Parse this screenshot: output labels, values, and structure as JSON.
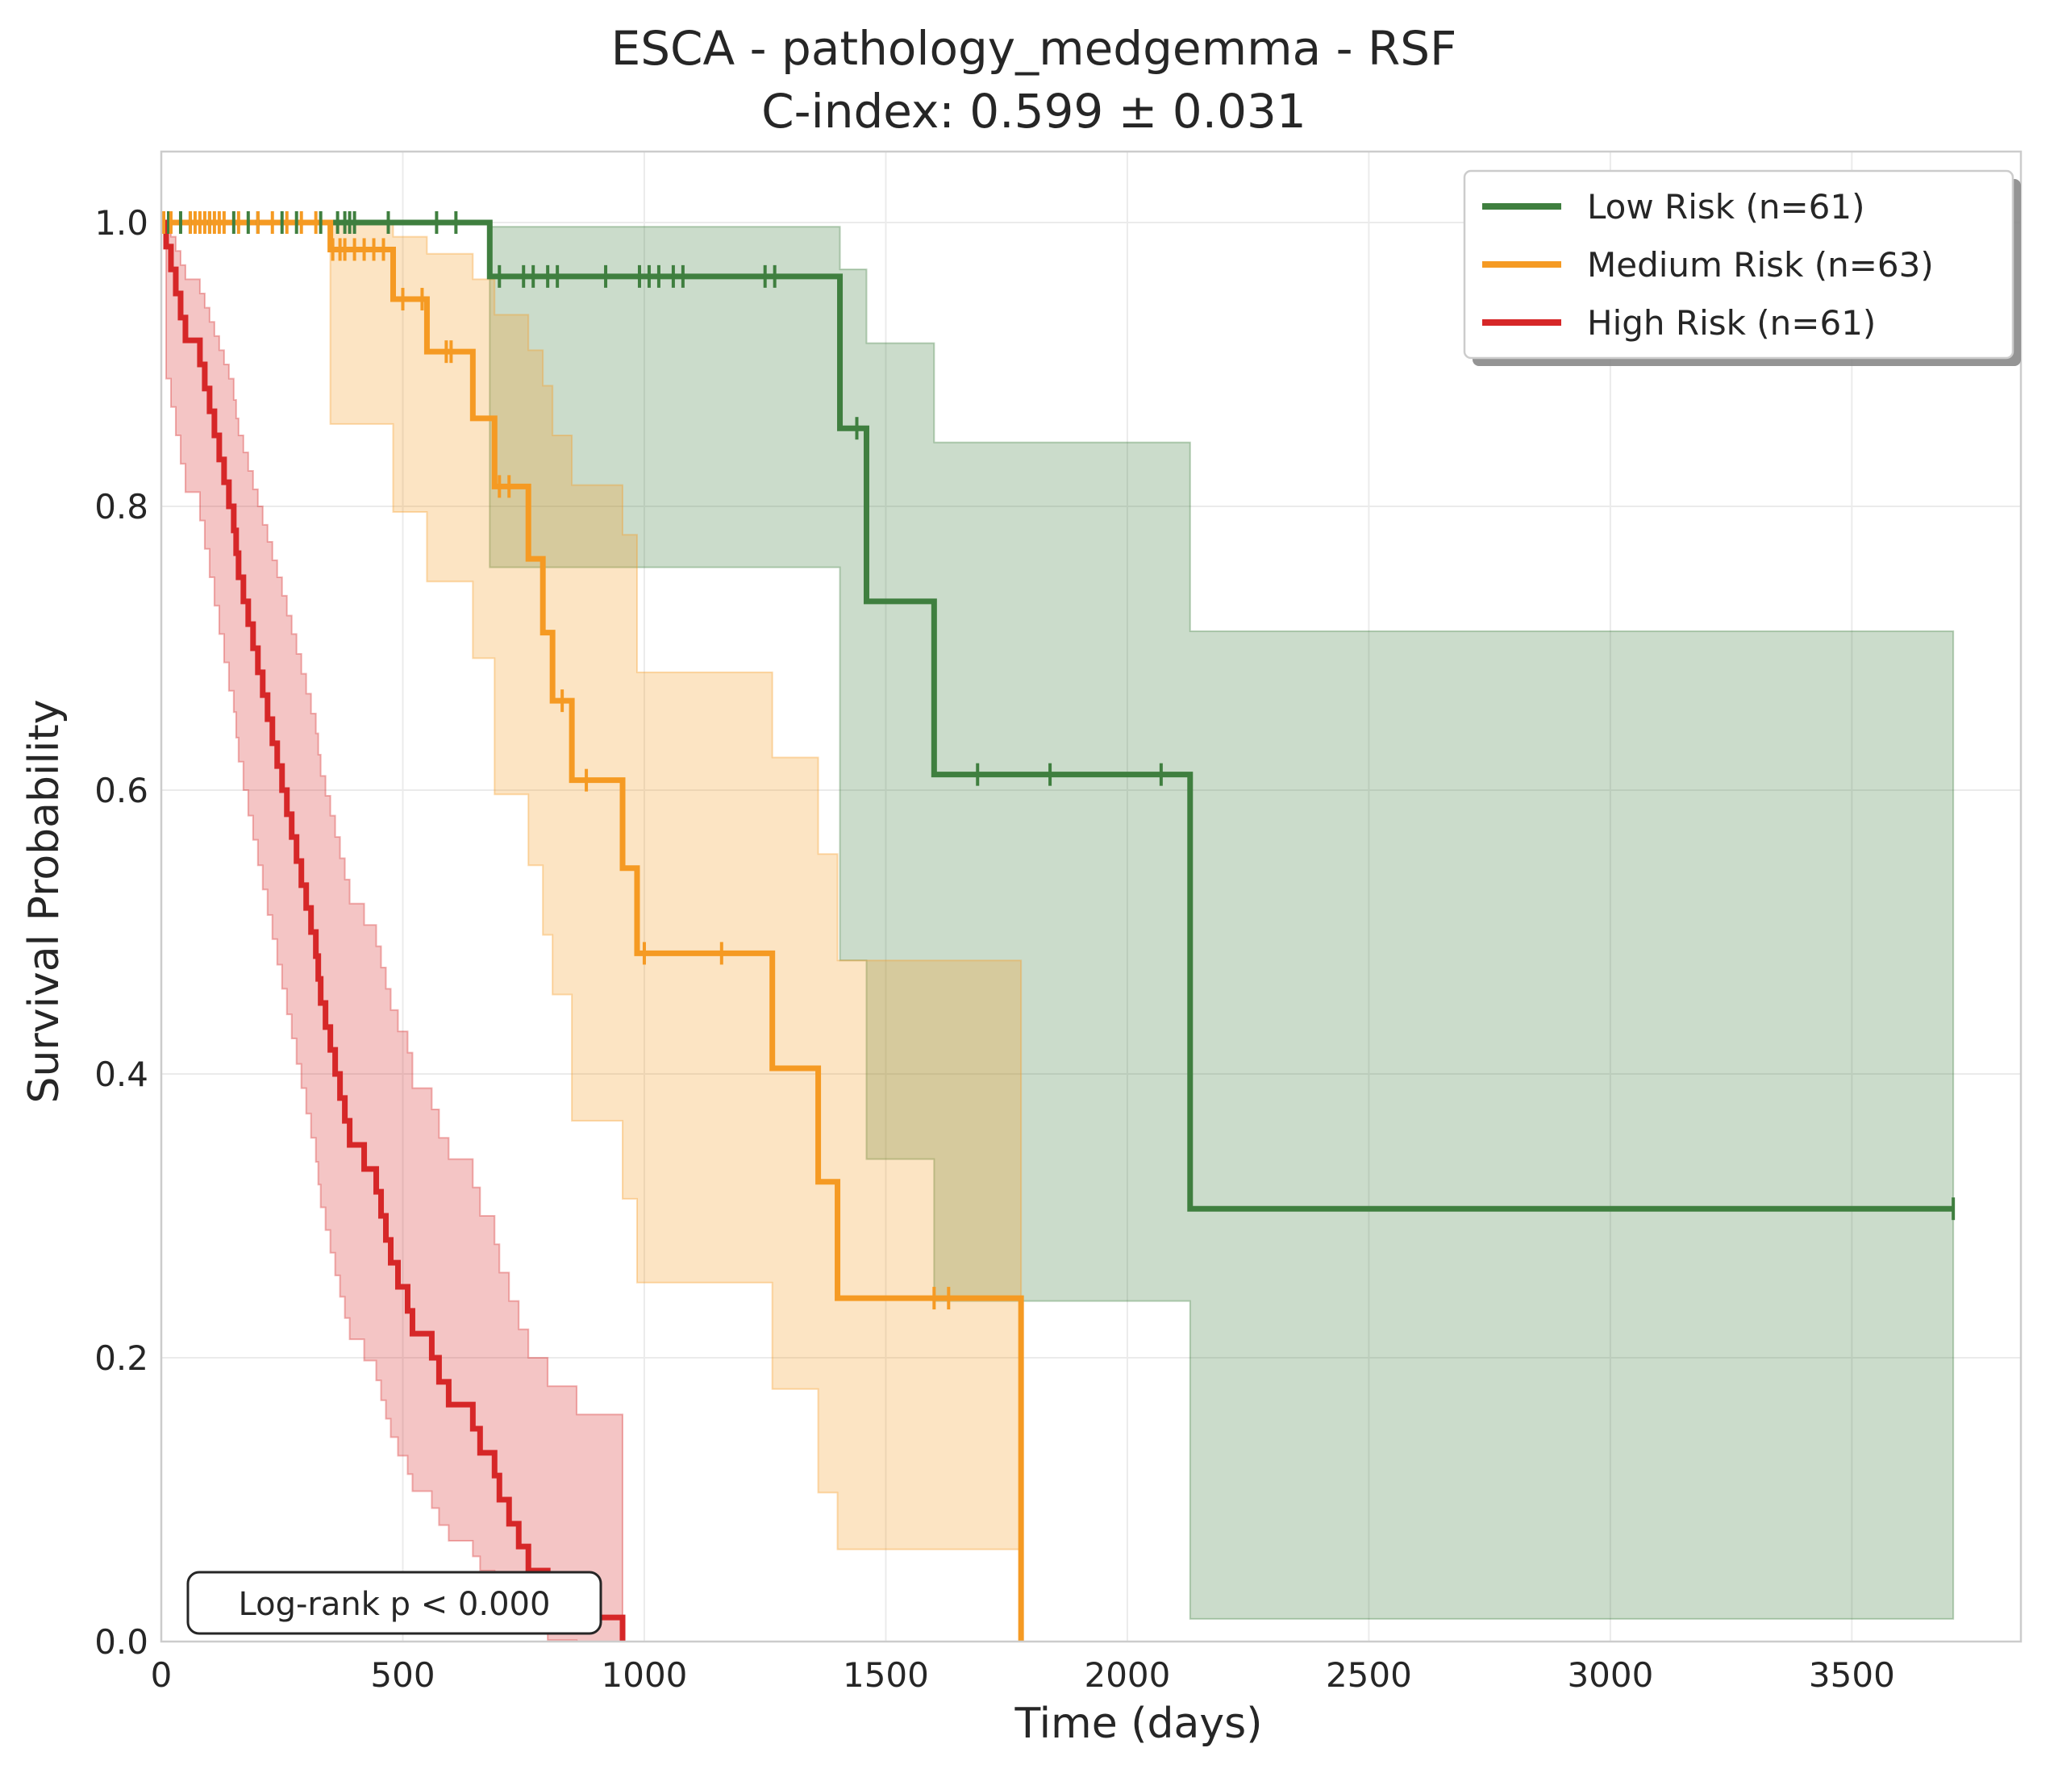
{
  "chart_data": {
    "type": "line",
    "subtype": "kaplan-meier",
    "title": "ESCA - pathology_medgemma - RSF",
    "subtitle": "C-index: 0.599 ± 0.031",
    "xlabel": "Time (days)",
    "ylabel": "Survival Probability",
    "xlim": [
      0,
      3850
    ],
    "ylim": [
      0,
      1.05
    ],
    "xticks": [
      0,
      500,
      1000,
      1500,
      2000,
      2500,
      3000,
      3500
    ],
    "xtick_labels": [
      "0",
      "500",
      "1000",
      "1500",
      "2000",
      "2500",
      "3000",
      "3500"
    ],
    "yticks": [
      0.0,
      0.2,
      0.4,
      0.6,
      0.8,
      1.0
    ],
    "ytick_labels": [
      "0.0",
      "0.2",
      "0.4",
      "0.6",
      "0.8",
      "1.0"
    ],
    "grid": true,
    "legend_position": "top-right",
    "annotation": "Log-rank p < 0.000",
    "series": [
      {
        "name": "Low Risk (n=61)",
        "color": "#3f7f3f",
        "steps": [
          [
            0,
            1.0
          ],
          [
            680,
            0.962
          ],
          [
            1405,
            0.855
          ],
          [
            1460,
            0.733
          ],
          [
            1600,
            0.611
          ],
          [
            2130,
            0.305
          ],
          [
            3710,
            0.305
          ]
        ],
        "ci_upper": [
          [
            0,
            1.0
          ],
          [
            680,
            0.997
          ],
          [
            1405,
            0.967
          ],
          [
            1460,
            0.915
          ],
          [
            1600,
            0.845
          ],
          [
            2130,
            0.712
          ],
          [
            3710,
            0.712
          ]
        ],
        "ci_lower": [
          [
            0,
            1.0
          ],
          [
            680,
            0.757
          ],
          [
            1405,
            0.48
          ],
          [
            1460,
            0.34
          ],
          [
            1600,
            0.24
          ],
          [
            2130,
            0.016
          ],
          [
            3710,
            0.016
          ]
        ],
        "censor_times": [
          15,
          40,
          60,
          100,
          150,
          180,
          200,
          250,
          280,
          330,
          365,
          380,
          390,
          400,
          470,
          570,
          610,
          700,
          750,
          770,
          800,
          820,
          920,
          990,
          1010,
          1030,
          1060,
          1080,
          1250,
          1270,
          1440,
          1690,
          1840,
          2070,
          3710
        ]
      },
      {
        "name": "Medium Risk (n=63)",
        "color": "#f59a23",
        "steps": [
          [
            0,
            1.0
          ],
          [
            350,
            0.981
          ],
          [
            480,
            0.946
          ],
          [
            550,
            0.909
          ],
          [
            645,
            0.862
          ],
          [
            690,
            0.814
          ],
          [
            760,
            0.763
          ],
          [
            790,
            0.711
          ],
          [
            810,
            0.663
          ],
          [
            850,
            0.607
          ],
          [
            955,
            0.545
          ],
          [
            985,
            0.485
          ],
          [
            1265,
            0.404
          ],
          [
            1360,
            0.324
          ],
          [
            1400,
            0.242
          ],
          [
            1780,
            0.0
          ]
        ],
        "ci_upper": [
          [
            0,
            1.0
          ],
          [
            350,
            0.999
          ],
          [
            480,
            0.99
          ],
          [
            550,
            0.978
          ],
          [
            645,
            0.96
          ],
          [
            690,
            0.935
          ],
          [
            760,
            0.91
          ],
          [
            790,
            0.885
          ],
          [
            810,
            0.85
          ],
          [
            850,
            0.815
          ],
          [
            955,
            0.78
          ],
          [
            985,
            0.683
          ],
          [
            1265,
            0.623
          ],
          [
            1360,
            0.555
          ],
          [
            1400,
            0.48
          ],
          [
            1780,
            0.48
          ]
        ],
        "ci_lower": [
          [
            0,
            1.0
          ],
          [
            350,
            0.858
          ],
          [
            480,
            0.796
          ],
          [
            550,
            0.747
          ],
          [
            645,
            0.693
          ],
          [
            690,
            0.597
          ],
          [
            760,
            0.547
          ],
          [
            790,
            0.498
          ],
          [
            810,
            0.456
          ],
          [
            850,
            0.367
          ],
          [
            955,
            0.312
          ],
          [
            985,
            0.253
          ],
          [
            1265,
            0.178
          ],
          [
            1360,
            0.105
          ],
          [
            1400,
            0.065
          ],
          [
            1780,
            0.065
          ]
        ],
        "censor_times": [
          5,
          20,
          60,
          70,
          80,
          90,
          100,
          110,
          120,
          130,
          160,
          200,
          230,
          260,
          290,
          320,
          355,
          370,
          380,
          400,
          420,
          440,
          460,
          500,
          540,
          590,
          600,
          700,
          720,
          830,
          880,
          1000,
          1160,
          1600,
          1630
        ]
      },
      {
        "name": "High Risk (n=61)",
        "color": "#d62728",
        "steps": [
          [
            0,
            1.0
          ],
          [
            10,
            0.983
          ],
          [
            20,
            0.967
          ],
          [
            30,
            0.95
          ],
          [
            40,
            0.933
          ],
          [
            50,
            0.917
          ],
          [
            80,
            0.9
          ],
          [
            90,
            0.883
          ],
          [
            100,
            0.867
          ],
          [
            110,
            0.85
          ],
          [
            120,
            0.833
          ],
          [
            130,
            0.817
          ],
          [
            140,
            0.8
          ],
          [
            150,
            0.783
          ],
          [
            155,
            0.767
          ],
          [
            160,
            0.75
          ],
          [
            170,
            0.733
          ],
          [
            180,
            0.717
          ],
          [
            190,
            0.7
          ],
          [
            200,
            0.683
          ],
          [
            210,
            0.667
          ],
          [
            220,
            0.65
          ],
          [
            230,
            0.633
          ],
          [
            240,
            0.617
          ],
          [
            250,
            0.6
          ],
          [
            260,
            0.583
          ],
          [
            270,
            0.567
          ],
          [
            280,
            0.55
          ],
          [
            290,
            0.533
          ],
          [
            300,
            0.517
          ],
          [
            310,
            0.5
          ],
          [
            320,
            0.483
          ],
          [
            325,
            0.467
          ],
          [
            330,
            0.45
          ],
          [
            340,
            0.433
          ],
          [
            350,
            0.417
          ],
          [
            360,
            0.4
          ],
          [
            370,
            0.383
          ],
          [
            380,
            0.367
          ],
          [
            390,
            0.35
          ],
          [
            420,
            0.333
          ],
          [
            445,
            0.317
          ],
          [
            455,
            0.3
          ],
          [
            465,
            0.283
          ],
          [
            475,
            0.267
          ],
          [
            490,
            0.25
          ],
          [
            510,
            0.233
          ],
          [
            520,
            0.217
          ],
          [
            560,
            0.2
          ],
          [
            575,
            0.183
          ],
          [
            595,
            0.167
          ],
          [
            645,
            0.15
          ],
          [
            660,
            0.133
          ],
          [
            690,
            0.117
          ],
          [
            700,
            0.1
          ],
          [
            720,
            0.083
          ],
          [
            740,
            0.067
          ],
          [
            760,
            0.05
          ],
          [
            800,
            0.033
          ],
          [
            860,
            0.017
          ],
          [
            955,
            0.0
          ]
        ],
        "ci_upper": [
          [
            0,
            1.0
          ],
          [
            10,
            0.998
          ],
          [
            20,
            0.99
          ],
          [
            30,
            0.98
          ],
          [
            40,
            0.97
          ],
          [
            50,
            0.96
          ],
          [
            80,
            0.95
          ],
          [
            90,
            0.94
          ],
          [
            100,
            0.93
          ],
          [
            110,
            0.92
          ],
          [
            120,
            0.91
          ],
          [
            130,
            0.9
          ],
          [
            140,
            0.89
          ],
          [
            150,
            0.875
          ],
          [
            155,
            0.862
          ],
          [
            160,
            0.85
          ],
          [
            170,
            0.838
          ],
          [
            180,
            0.825
          ],
          [
            190,
            0.812
          ],
          [
            200,
            0.8
          ],
          [
            210,
            0.787
          ],
          [
            220,
            0.775
          ],
          [
            230,
            0.762
          ],
          [
            240,
            0.75
          ],
          [
            250,
            0.737
          ],
          [
            260,
            0.723
          ],
          [
            270,
            0.71
          ],
          [
            280,
            0.696
          ],
          [
            290,
            0.682
          ],
          [
            300,
            0.668
          ],
          [
            310,
            0.654
          ],
          [
            320,
            0.64
          ],
          [
            325,
            0.625
          ],
          [
            330,
            0.61
          ],
          [
            340,
            0.596
          ],
          [
            350,
            0.582
          ],
          [
            360,
            0.567
          ],
          [
            370,
            0.552
          ],
          [
            380,
            0.537
          ],
          [
            390,
            0.52
          ],
          [
            420,
            0.505
          ],
          [
            445,
            0.49
          ],
          [
            455,
            0.475
          ],
          [
            465,
            0.46
          ],
          [
            475,
            0.445
          ],
          [
            490,
            0.43
          ],
          [
            510,
            0.415
          ],
          [
            520,
            0.39
          ],
          [
            560,
            0.375
          ],
          [
            575,
            0.355
          ],
          [
            595,
            0.34
          ],
          [
            645,
            0.32
          ],
          [
            660,
            0.3
          ],
          [
            690,
            0.28
          ],
          [
            700,
            0.26
          ],
          [
            720,
            0.24
          ],
          [
            740,
            0.22
          ],
          [
            760,
            0.2
          ],
          [
            800,
            0.18
          ],
          [
            860,
            0.16
          ],
          [
            955,
            0.16
          ]
        ],
        "ci_lower": [
          [
            0,
            1.0
          ],
          [
            10,
            0.89
          ],
          [
            20,
            0.87
          ],
          [
            30,
            0.85
          ],
          [
            40,
            0.83
          ],
          [
            50,
            0.81
          ],
          [
            80,
            0.79
          ],
          [
            90,
            0.77
          ],
          [
            100,
            0.75
          ],
          [
            110,
            0.73
          ],
          [
            120,
            0.71
          ],
          [
            130,
            0.69
          ],
          [
            140,
            0.67
          ],
          [
            150,
            0.655
          ],
          [
            155,
            0.637
          ],
          [
            160,
            0.62
          ],
          [
            170,
            0.6
          ],
          [
            180,
            0.582
          ],
          [
            190,
            0.565
          ],
          [
            200,
            0.547
          ],
          [
            210,
            0.53
          ],
          [
            220,
            0.512
          ],
          [
            230,
            0.495
          ],
          [
            240,
            0.477
          ],
          [
            250,
            0.46
          ],
          [
            260,
            0.442
          ],
          [
            270,
            0.425
          ],
          [
            280,
            0.407
          ],
          [
            290,
            0.39
          ],
          [
            300,
            0.372
          ],
          [
            310,
            0.355
          ],
          [
            320,
            0.338
          ],
          [
            325,
            0.322
          ],
          [
            330,
            0.306
          ],
          [
            340,
            0.29
          ],
          [
            350,
            0.274
          ],
          [
            360,
            0.258
          ],
          [
            370,
            0.243
          ],
          [
            380,
            0.228
          ],
          [
            390,
            0.213
          ],
          [
            420,
            0.198
          ],
          [
            445,
            0.184
          ],
          [
            455,
            0.17
          ],
          [
            465,
            0.157
          ],
          [
            475,
            0.144
          ],
          [
            490,
            0.131
          ],
          [
            510,
            0.118
          ],
          [
            520,
            0.106
          ],
          [
            560,
            0.094
          ],
          [
            575,
            0.082
          ],
          [
            595,
            0.071
          ],
          [
            645,
            0.06
          ],
          [
            660,
            0.05
          ],
          [
            690,
            0.04
          ],
          [
            700,
            0.03
          ],
          [
            720,
            0.021
          ],
          [
            740,
            0.013
          ],
          [
            760,
            0.006
          ],
          [
            800,
            0.001
          ],
          [
            860,
            0.0
          ],
          [
            955,
            0.0
          ]
        ],
        "censor_times": []
      }
    ]
  }
}
